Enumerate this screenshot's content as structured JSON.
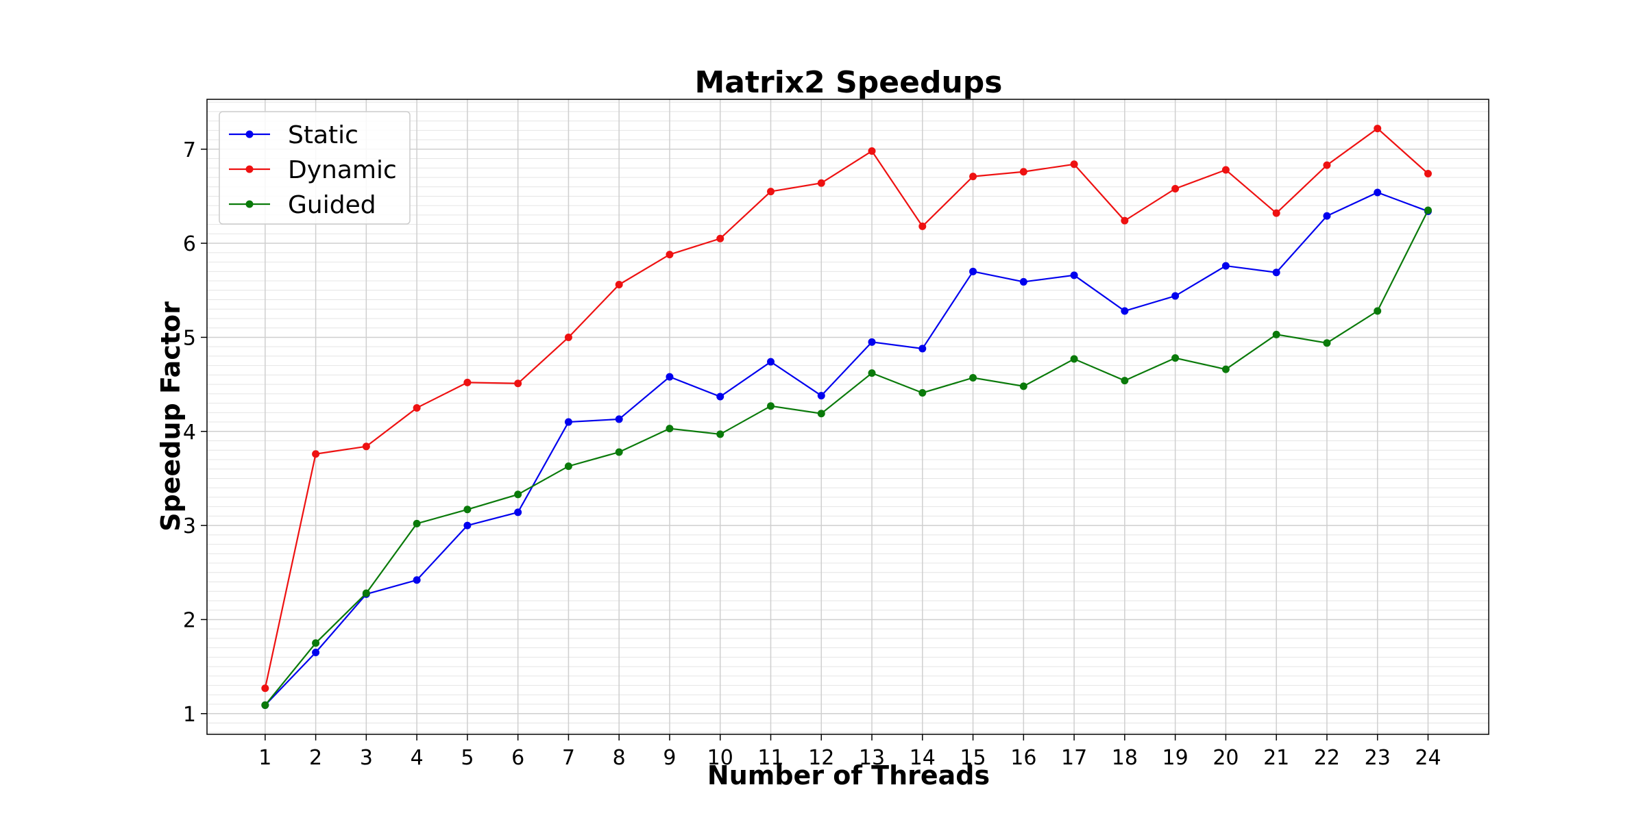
{
  "chart_data": {
    "type": "line",
    "title": "Matrix2 Speedups",
    "xlabel": "Number of Threads",
    "ylabel": "Speedup Factor",
    "x": [
      1,
      2,
      3,
      4,
      5,
      6,
      7,
      8,
      9,
      10,
      11,
      12,
      13,
      14,
      15,
      16,
      17,
      18,
      19,
      20,
      21,
      22,
      23,
      24
    ],
    "xlim": [
      -0.15,
      25.2
    ],
    "ylim": [
      0.78,
      7.53
    ],
    "yticks": [
      1,
      2,
      3,
      4,
      5,
      6,
      7
    ],
    "grid": true,
    "legend_position": "upper-left",
    "series": [
      {
        "name": "Static",
        "color": "#0000ee",
        "values": [
          1.09,
          1.65,
          2.27,
          2.42,
          3.0,
          3.14,
          4.1,
          4.13,
          4.58,
          4.37,
          4.74,
          4.38,
          4.95,
          4.88,
          5.7,
          5.59,
          5.66,
          5.28,
          5.44,
          5.76,
          5.69,
          6.29,
          6.54,
          6.34
        ]
      },
      {
        "name": "Dynamic",
        "color": "#ee1111",
        "values": [
          1.27,
          3.76,
          3.84,
          4.25,
          4.52,
          4.51,
          5.0,
          5.56,
          5.88,
          6.05,
          6.55,
          6.64,
          6.98,
          6.18,
          6.71,
          6.76,
          6.84,
          6.24,
          6.58,
          6.78,
          6.32,
          6.83,
          7.22,
          6.74
        ]
      },
      {
        "name": "Guided",
        "color": "#0a7a0a",
        "values": [
          1.09,
          1.75,
          2.28,
          3.02,
          3.17,
          3.33,
          3.63,
          3.78,
          4.03,
          3.97,
          4.27,
          4.19,
          4.62,
          4.41,
          4.57,
          4.48,
          4.77,
          4.54,
          4.78,
          4.66,
          5.03,
          4.94,
          5.28,
          6.35
        ]
      }
    ]
  }
}
